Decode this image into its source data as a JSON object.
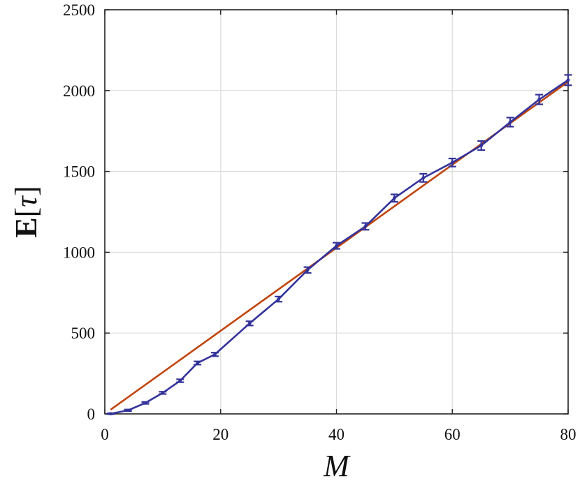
{
  "chart_data": {
    "type": "line",
    "xlabel": "M",
    "ylabel": {
      "prefix": "E",
      "open": "[",
      "symbol": "τ",
      "close": "]"
    },
    "xlim": [
      0,
      80
    ],
    "ylim": [
      0,
      2500
    ],
    "x_ticks": [
      0,
      20,
      40,
      60,
      80
    ],
    "y_ticks": [
      0,
      500,
      1000,
      1500,
      2000,
      2500
    ],
    "grid": true,
    "series": [
      {
        "color": "#33339a",
        "style": "line-markers-errorbars",
        "x": [
          1,
          4,
          7,
          10,
          13,
          16,
          19,
          25,
          30,
          35,
          40,
          45,
          50,
          55,
          60,
          65,
          70,
          75,
          80
        ],
        "y": [
          1,
          22,
          68,
          130,
          205,
          315,
          368,
          560,
          710,
          890,
          1040,
          1160,
          1335,
          1460,
          1555,
          1660,
          1805,
          1945,
          2065
        ],
        "err": [
          3,
          5,
          6,
          7,
          9,
          10,
          11,
          13,
          16,
          18,
          19,
          21,
          23,
          25,
          25,
          28,
          28,
          30,
          32
        ]
      },
      {
        "color": "#c0450e",
        "style": "line",
        "x": [
          1,
          80
        ],
        "y": [
          26,
          2055
        ]
      }
    ]
  }
}
